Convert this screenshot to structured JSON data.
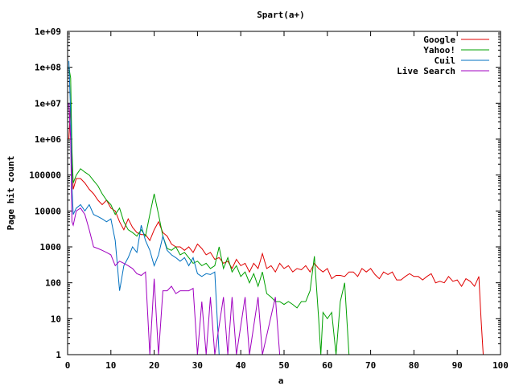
{
  "chart_data": {
    "type": "line",
    "title": "Spart(a+)",
    "xlabel": "a",
    "ylabel": "Page hit count",
    "xlim": [
      0,
      100
    ],
    "ylim": [
      1,
      1000000000
    ],
    "yscale": "log",
    "grid": false,
    "legend_position": "top-right",
    "x_ticks": [
      0,
      10,
      20,
      30,
      40,
      50,
      60,
      70,
      80,
      90,
      100
    ],
    "y_ticks": [
      1,
      10,
      100,
      1000,
      10000,
      100000,
      1000000,
      10000000,
      100000000,
      1000000000
    ],
    "x_tick_labels": [
      "0",
      "10",
      "20",
      "30",
      "40",
      "50",
      "60",
      "70",
      "80",
      "90",
      "100"
    ],
    "y_tick_labels": [
      "1",
      "10",
      "100",
      "1000",
      "10000",
      "100000",
      "1e+06",
      "1e+07",
      "1e+08",
      "1e+09"
    ],
    "series": [
      {
        "name": "Google",
        "color": "#e00000",
        "points": [
          [
            0.3,
            1000000
          ],
          [
            0.7,
            10000000
          ],
          [
            1,
            300000
          ],
          [
            1.3,
            40000
          ],
          [
            2,
            80000
          ],
          [
            3,
            80000
          ],
          [
            4,
            60000
          ],
          [
            5,
            40000
          ],
          [
            6,
            30000
          ],
          [
            7,
            20000
          ],
          [
            8,
            15000
          ],
          [
            9,
            20000
          ],
          [
            10,
            12000
          ],
          [
            11,
            10000
          ],
          [
            12,
            5000
          ],
          [
            13,
            3000
          ],
          [
            14,
            6000
          ],
          [
            15,
            3500
          ],
          [
            16,
            2500
          ],
          [
            17,
            2200
          ],
          [
            18,
            2200
          ],
          [
            19,
            1500
          ],
          [
            20,
            3000
          ],
          [
            21,
            5000
          ],
          [
            22,
            2500
          ],
          [
            23,
            2000
          ],
          [
            24,
            1200
          ],
          [
            25,
            1000
          ],
          [
            26,
            1000
          ],
          [
            27,
            800
          ],
          [
            28,
            1000
          ],
          [
            29,
            700
          ],
          [
            30,
            1200
          ],
          [
            31,
            900
          ],
          [
            32,
            600
          ],
          [
            33,
            700
          ],
          [
            34,
            450
          ],
          [
            35,
            500
          ],
          [
            36,
            350
          ],
          [
            37,
            400
          ],
          [
            38,
            250
          ],
          [
            39,
            450
          ],
          [
            40,
            300
          ],
          [
            41,
            350
          ],
          [
            42,
            200
          ],
          [
            43,
            350
          ],
          [
            44,
            250
          ],
          [
            45,
            650
          ],
          [
            46,
            250
          ],
          [
            47,
            300
          ],
          [
            48,
            200
          ],
          [
            49,
            350
          ],
          [
            50,
            250
          ],
          [
            51,
            300
          ],
          [
            52,
            200
          ],
          [
            53,
            250
          ],
          [
            54,
            230
          ],
          [
            55,
            300
          ],
          [
            56,
            200
          ],
          [
            57,
            350
          ],
          [
            58,
            250
          ],
          [
            59,
            200
          ],
          [
            60,
            250
          ],
          [
            61,
            130
          ],
          [
            62,
            160
          ],
          [
            63,
            160
          ],
          [
            64,
            150
          ],
          [
            65,
            200
          ],
          [
            66,
            200
          ],
          [
            67,
            150
          ],
          [
            68,
            250
          ],
          [
            69,
            200
          ],
          [
            70,
            250
          ],
          [
            71,
            170
          ],
          [
            72,
            130
          ],
          [
            73,
            200
          ],
          [
            74,
            170
          ],
          [
            75,
            200
          ],
          [
            76,
            120
          ],
          [
            77,
            120
          ],
          [
            78,
            150
          ],
          [
            79,
            180
          ],
          [
            80,
            150
          ],
          [
            81,
            150
          ],
          [
            82,
            120
          ],
          [
            83,
            150
          ],
          [
            84,
            180
          ],
          [
            85,
            100
          ],
          [
            86,
            110
          ],
          [
            87,
            100
          ],
          [
            88,
            150
          ],
          [
            89,
            110
          ],
          [
            90,
            120
          ],
          [
            91,
            80
          ],
          [
            92,
            130
          ],
          [
            93,
            110
          ],
          [
            94,
            80
          ],
          [
            95,
            150
          ],
          [
            95.5,
            10
          ],
          [
            96,
            1
          ]
        ]
      },
      {
        "name": "Yahoo!",
        "color": "#00a000",
        "points": [
          [
            0.3,
            100000000
          ],
          [
            0.7,
            50000000
          ],
          [
            1,
            500000
          ],
          [
            1.3,
            60000
          ],
          [
            2,
            100000
          ],
          [
            3,
            150000
          ],
          [
            4,
            120000
          ],
          [
            5,
            100000
          ],
          [
            6,
            70000
          ],
          [
            7,
            50000
          ],
          [
            8,
            30000
          ],
          [
            9,
            20000
          ],
          [
            10,
            15000
          ],
          [
            11,
            8000
          ],
          [
            12,
            12000
          ],
          [
            13,
            5000
          ],
          [
            14,
            3000
          ],
          [
            15,
            2500
          ],
          [
            16,
            2000
          ],
          [
            17,
            3000
          ],
          [
            18,
            2000
          ],
          [
            19,
            8000
          ],
          [
            20,
            30000
          ],
          [
            21,
            8000
          ],
          [
            22,
            2000
          ],
          [
            23,
            900
          ],
          [
            24,
            800
          ],
          [
            25,
            1000
          ],
          [
            26,
            600
          ],
          [
            27,
            700
          ],
          [
            28,
            500
          ],
          [
            29,
            350
          ],
          [
            30,
            400
          ],
          [
            31,
            300
          ],
          [
            32,
            350
          ],
          [
            33,
            250
          ],
          [
            34,
            300
          ],
          [
            35,
            1000
          ],
          [
            36,
            250
          ],
          [
            37,
            500
          ],
          [
            38,
            200
          ],
          [
            39,
            300
          ],
          [
            40,
            150
          ],
          [
            41,
            200
          ],
          [
            42,
            100
          ],
          [
            43,
            180
          ],
          [
            44,
            80
          ],
          [
            45,
            200
          ],
          [
            46,
            50
          ],
          [
            47,
            40
          ],
          [
            48,
            30
          ],
          [
            49,
            30
          ],
          [
            50,
            25
          ],
          [
            51,
            30
          ],
          [
            52,
            25
          ],
          [
            53,
            20
          ],
          [
            54,
            30
          ],
          [
            55,
            30
          ],
          [
            56,
            60
          ],
          [
            57,
            550
          ],
          [
            58,
            10
          ],
          [
            58.5,
            1
          ],
          [
            59,
            15
          ],
          [
            60,
            10
          ],
          [
            61,
            15
          ],
          [
            62,
            1
          ],
          [
            63,
            30
          ],
          [
            64,
            100
          ],
          [
            65,
            1
          ],
          [
            70,
            1
          ],
          [
            74,
            1
          ],
          [
            89,
            1
          ]
        ]
      },
      {
        "name": "Cuil",
        "color": "#0070c0",
        "points": [
          [
            0.3,
            150000000
          ],
          [
            0.7,
            5000000
          ],
          [
            1,
            50000
          ],
          [
            1.3,
            8000
          ],
          [
            2,
            12000
          ],
          [
            3,
            15000
          ],
          [
            4,
            10000
          ],
          [
            5,
            15000
          ],
          [
            6,
            8000
          ],
          [
            7,
            7000
          ],
          [
            8,
            6000
          ],
          [
            9,
            5000
          ],
          [
            10,
            6000
          ],
          [
            11,
            1500
          ],
          [
            12,
            60
          ],
          [
            13,
            300
          ],
          [
            14,
            500
          ],
          [
            15,
            1000
          ],
          [
            16,
            700
          ],
          [
            17,
            4000
          ],
          [
            18,
            1500
          ],
          [
            19,
            800
          ],
          [
            20,
            300
          ],
          [
            21,
            600
          ],
          [
            22,
            2000
          ],
          [
            23,
            800
          ],
          [
            24,
            600
          ],
          [
            25,
            500
          ],
          [
            26,
            400
          ],
          [
            27,
            500
          ],
          [
            28,
            300
          ],
          [
            29,
            500
          ],
          [
            30,
            180
          ],
          [
            31,
            150
          ],
          [
            32,
            180
          ],
          [
            33,
            170
          ],
          [
            34,
            200
          ],
          [
            35,
            1
          ]
        ]
      },
      {
        "name": "Live Search",
        "color": "#a000c0",
        "points": [
          [
            0.3,
            10000000
          ],
          [
            0.7,
            1000000
          ],
          [
            1,
            5000
          ],
          [
            1.3,
            4000
          ],
          [
            2,
            10000
          ],
          [
            3,
            12000
          ],
          [
            4,
            8000
          ],
          [
            5,
            3000
          ],
          [
            6,
            1000
          ],
          [
            7,
            900
          ],
          [
            8,
            800
          ],
          [
            9,
            700
          ],
          [
            10,
            600
          ],
          [
            11,
            300
          ],
          [
            12,
            400
          ],
          [
            13,
            350
          ],
          [
            14,
            300
          ],
          [
            15,
            250
          ],
          [
            16,
            180
          ],
          [
            17,
            160
          ],
          [
            18,
            200
          ],
          [
            19,
            1
          ],
          [
            20,
            130
          ],
          [
            21,
            1
          ],
          [
            22,
            60
          ],
          [
            23,
            60
          ],
          [
            24,
            80
          ],
          [
            25,
            50
          ],
          [
            26,
            60
          ],
          [
            27,
            60
          ],
          [
            28,
            60
          ],
          [
            29,
            70
          ],
          [
            30,
            1
          ],
          [
            31,
            30
          ],
          [
            32,
            1
          ],
          [
            33,
            40
          ],
          [
            34,
            1
          ],
          [
            36,
            40
          ],
          [
            37,
            1
          ],
          [
            38,
            40
          ],
          [
            39,
            1
          ],
          [
            41,
            40
          ],
          [
            42,
            1
          ],
          [
            44,
            40
          ],
          [
            45,
            1
          ],
          [
            48,
            40
          ],
          [
            49,
            1
          ]
        ]
      }
    ]
  }
}
